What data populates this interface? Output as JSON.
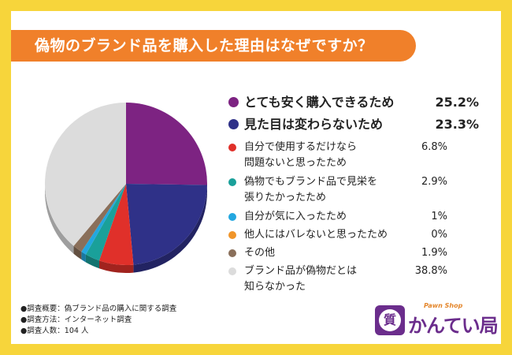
{
  "title": "偽物のブランド品を購入した理由はなぜですか？",
  "chart_data": {
    "type": "pie",
    "title": "",
    "slices": [
      {
        "label_lines": [
          "とても安く購入できるため"
        ],
        "value": 25.2,
        "display": "25.2%",
        "color": "#7d2382",
        "emphasis": true
      },
      {
        "label_lines": [
          "見た目は変わらないため"
        ],
        "value": 23.3,
        "display": "23.3%",
        "color": "#2f3188",
        "emphasis": true
      },
      {
        "label_lines": [
          "自分で使用するだけなら",
          "問題ないと思ったため"
        ],
        "value": 6.8,
        "display": "6.8%",
        "color": "#e0302a",
        "emphasis": false
      },
      {
        "label_lines": [
          "偽物でもブランド品で見栄を",
          "張りたかったため"
        ],
        "value": 2.9,
        "display": "2.9%",
        "color": "#1aa09a",
        "emphasis": false
      },
      {
        "label_lines": [
          "自分が気に入ったため"
        ],
        "value": 1,
        "display": "1%",
        "color": "#23a7e0",
        "emphasis": false
      },
      {
        "label_lines": [
          "他人にはバレないと思ったため"
        ],
        "value": 0,
        "display": "0%",
        "color": "#f0952a",
        "emphasis": false
      },
      {
        "label_lines": [
          "その他"
        ],
        "value": 1.9,
        "display": "1.9%",
        "color": "#8a6f5a",
        "emphasis": false
      },
      {
        "label_lines": [
          "ブランド品が偽物だとは",
          "知らなかった"
        ],
        "value": 38.8,
        "display": "38.8%",
        "color": "#dcdcdc",
        "emphasis": false
      }
    ],
    "legend_placement": "right"
  },
  "notes": [
    "●調査概要：偽ブランド品の購入に関する調査",
    "●調査方法：インターネット調査",
    "●調査人数：104 人"
  ],
  "logo": {
    "badge_char": "質",
    "sub": "Pawn Shop",
    "main": "かんてい局"
  }
}
